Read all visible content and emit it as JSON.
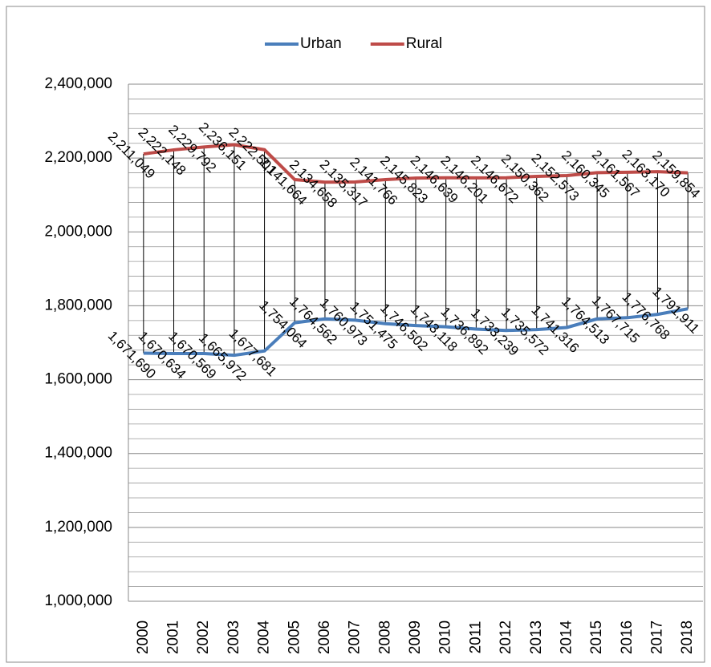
{
  "chart_data": {
    "type": "line",
    "categories": [
      "2000",
      "2001",
      "2002",
      "2003",
      "2004",
      "2005",
      "2006",
      "2007",
      "2008",
      "2009",
      "2010",
      "2011",
      "2012",
      "2013",
      "2014",
      "2015",
      "2016",
      "2017",
      "2018"
    ],
    "series": [
      {
        "name": "Urban",
        "color": "#4a7ebb",
        "values": [
          1671690,
          1670634,
          1670569,
          1665972,
          1677681,
          1754064,
          1764562,
          1760973,
          1751475,
          1746502,
          1743118,
          1736892,
          1733239,
          1735572,
          1741316,
          1764513,
          1767715,
          1776768,
          1791911
        ],
        "value_labels": [
          "1,671,690",
          "1,670,634",
          "1,670,569",
          "1,665,972",
          "1,677,681",
          "1,754,064",
          "1,764,562",
          "1,760,973",
          "1,751,475",
          "1,746,502",
          "1,743,118",
          "1,736,892",
          "1,733,239",
          "1,735,572",
          "1,741,316",
          "1,764,513",
          "1,767,715",
          "1,776,768",
          "1,791,911"
        ]
      },
      {
        "name": "Rural",
        "color": "#be4b48",
        "values": [
          2211049,
          2222148,
          2229792,
          2236151,
          2222501,
          2141664,
          2134658,
          2135317,
          2141766,
          2145823,
          2146639,
          2146201,
          2146672,
          2150362,
          2152573,
          2160345,
          2161567,
          2163170,
          2159854
        ],
        "value_labels": [
          "2,211,049",
          "2,222,148",
          "2,229,792",
          "2,236,151",
          "2,222,501",
          "2,141,664",
          "2,134,658",
          "2,135,317",
          "2,141,766",
          "2,145,823",
          "2,146,639",
          "2,146,201",
          "2,146,672",
          "2,150,362",
          "2,152,573",
          "2,160,345",
          "2,161,567",
          "2,163,170",
          "2,159,854"
        ]
      }
    ],
    "ylim": [
      1000000,
      2400000
    ],
    "yticks": [
      {
        "value": 1000000,
        "label": "1,000,000"
      },
      {
        "value": 1200000,
        "label": "1,200,000"
      },
      {
        "value": 1400000,
        "label": "1,400,000"
      },
      {
        "value": 1600000,
        "label": "1,600,000"
      },
      {
        "value": 1800000,
        "label": "1,800,000"
      },
      {
        "value": 2000000,
        "label": "2,000,000"
      },
      {
        "value": 2200000,
        "label": "2,200,000"
      },
      {
        "value": 2400000,
        "label": "2,400,000"
      }
    ],
    "y_minor_ticks": [
      1040000,
      1080000,
      1120000,
      1160000,
      1240000,
      1280000,
      1320000,
      1360000,
      1440000,
      1480000,
      1520000,
      1560000,
      1640000,
      1680000,
      1720000,
      1760000,
      1840000,
      1880000,
      1920000,
      1960000,
      2040000,
      2080000,
      2120000,
      2160000,
      2240000,
      2280000,
      2320000,
      2360000
    ],
    "grid": true,
    "legend": "top",
    "high_low_lines": true
  }
}
